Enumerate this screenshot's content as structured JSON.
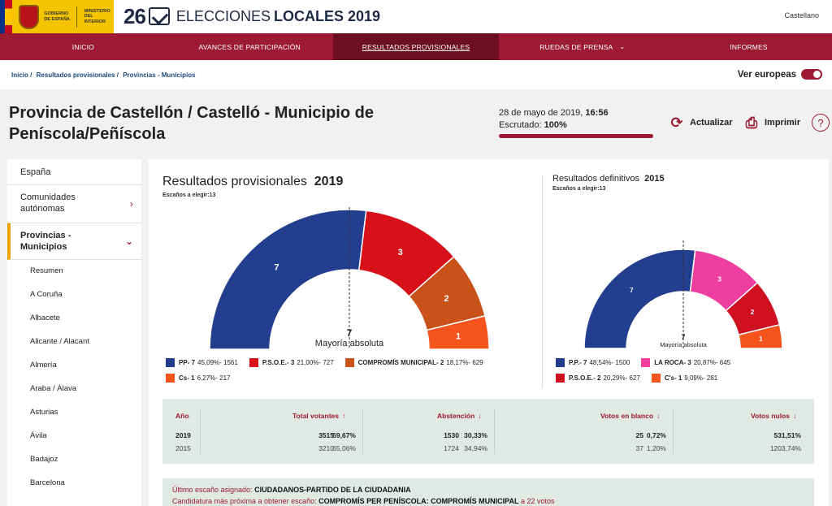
{
  "header": {
    "gov_text_1": "GOBIERNO DE ESPAÑA",
    "gov_text_2": "MINISTERIO DEL INTERIOR",
    "brand_number": "26",
    "brand_text_1": "ELECCIONES",
    "brand_text_2": "LOCALES 2019",
    "language": "Castellano"
  },
  "nav": {
    "items": [
      "INICIO",
      "AVANCES DE PARTICIPACIÓN",
      "RESULTADOS PROVISIONALES",
      "RUEDAS DE PRENSA",
      "INFORMES"
    ]
  },
  "breadcrumb": [
    "Inicio /",
    "Resultados provisionales /",
    "Provincias - Municipios"
  ],
  "europeas_label": "Ver europeas",
  "page": {
    "title": "Provincia de Castellón / Castelló - Municipio de Peníscola/Peñíscola",
    "date": "28 de mayo de 2019,",
    "time": "16:56",
    "escrutado_label": "Escrutado:",
    "escrutado_value": "100%",
    "refresh_label": "Actualizar",
    "print_label": "Imprimir"
  },
  "sidebar": {
    "items": [
      {
        "label": "España"
      },
      {
        "label": "Comunidades autónomas"
      },
      {
        "label": "Provincias - Municipios"
      }
    ],
    "subitems": [
      "Resumen",
      "A Coruña",
      "Albacete",
      "Alicante / Alacant",
      "Almería",
      "Araba / Álava",
      "Asturias",
      "Ávila",
      "Badajoz",
      "Barcelona"
    ]
  },
  "chart_data": [
    {
      "type": "pie",
      "title": "Resultados provisionales",
      "year": "2019",
      "seats_label": "Escaños a elegir:",
      "seats_total": "13",
      "majority_value": "7",
      "majority_label": "Mayoría absoluta",
      "categories": [
        "PP",
        "P.S.O.E.",
        "COMPROMÍS MUNICIPAL",
        "Cs"
      ],
      "values": [
        7,
        3,
        2,
        1
      ],
      "colors": [
        "#233e8f",
        "#d8101a",
        "#c9521b",
        "#f5551d"
      ],
      "legend": [
        {
          "name": "PP",
          "seats": "7",
          "detail": "45,09%- 1561"
        },
        {
          "name": "P.S.O.E.",
          "seats": "3",
          "detail": "21,00%- 727"
        },
        {
          "name": "COMPROMÍS MUNICIPAL",
          "seats": "2",
          "detail": "18,17%- 629"
        },
        {
          "name": "Cs",
          "seats": "1",
          "detail": "6,27%- 217"
        }
      ]
    },
    {
      "type": "pie",
      "title": "Resultados definitivos",
      "year": "2015",
      "seats_label": "Escaños a elegir:",
      "seats_total": "13",
      "majority_value": "7",
      "majority_label": "Mayoría absoluta",
      "categories": [
        "P.P.",
        "LA ROCA",
        "P.S.O.E.",
        "C's"
      ],
      "values": [
        7,
        3,
        2,
        1
      ],
      "colors": [
        "#233e8f",
        "#ee3fa0",
        "#cf1020",
        "#f5551d"
      ],
      "legend": [
        {
          "name": "P.P.",
          "seats": "7",
          "detail": "48,54%- 1500"
        },
        {
          "name": "LA ROCA",
          "seats": "3",
          "detail": "20,87%- 645"
        },
        {
          "name": "P.S.O.E.",
          "seats": "2",
          "detail": "20,29%- 627"
        },
        {
          "name": "C's",
          "seats": "1",
          "detail": "9,09%- 281"
        }
      ]
    }
  ],
  "stats": {
    "headers": [
      "Año",
      "Total votantes",
      "Abstención",
      "Votos en blanco",
      "Votos nulos"
    ],
    "rows": [
      {
        "year": "2019",
        "votantes": "3515",
        "votantes_pct": "69,67%",
        "abst": "1530",
        "abst_pct": "30,33%",
        "blanco": "25",
        "blanco_pct": "0,72%",
        "nulos": "53",
        "nulos_pct": "1,51%"
      },
      {
        "year": "2015",
        "votantes": "3210",
        "votantes_pct": "65,06%",
        "abst": "1724",
        "abst_pct": "34,94%",
        "blanco": "37",
        "blanco_pct": "1,20%",
        "nulos": "120",
        "nulos_pct": "3,74%"
      }
    ]
  },
  "info": {
    "last_label": "Último escaño asignado:",
    "last_value": "CIUDADANOS-PARTIDO DE LA CIUDADANIA",
    "next_label": "Candidatura más próxima a obtener escaño:",
    "next_value": "COMPROMÍS PER PENÍSCOLA: COMPROMÍS MUNICIPAL",
    "next_suffix_a": "a",
    "next_votes": "22",
    "next_suffix_b": "votos"
  }
}
